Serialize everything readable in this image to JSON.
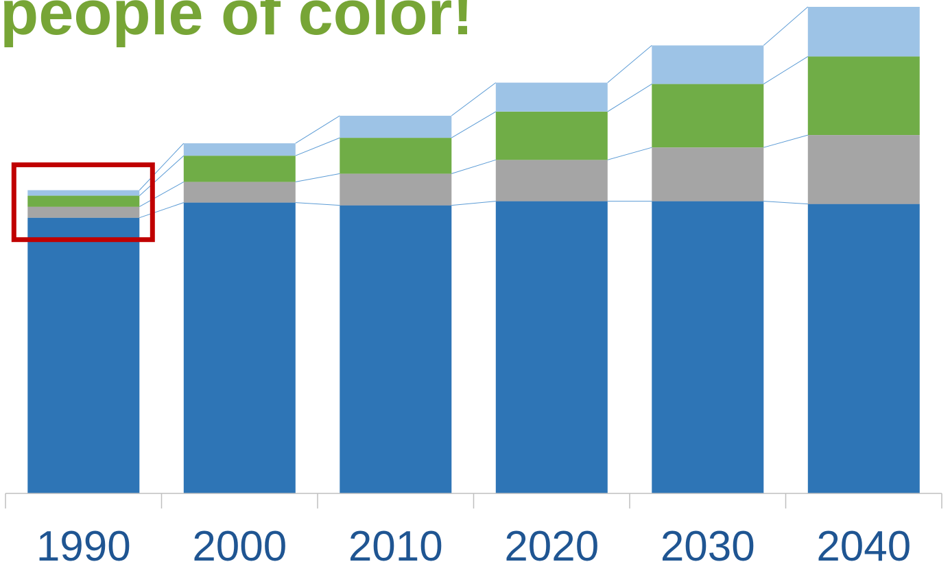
{
  "page": {
    "title": "people of color!"
  },
  "colors": {
    "title": "#77a536",
    "segments": [
      "#2e75b6",
      "#a5a5a5",
      "#70ad47",
      "#9dc3e6"
    ],
    "connector": "#5b9bd5",
    "axis": "#bfbfbf",
    "tick_label": "#1f5592",
    "highlight_box": "#c00000"
  },
  "chart_data": {
    "type": "bar",
    "stacked": true,
    "categories": [
      "1990",
      "2000",
      "2010",
      "2020",
      "2030",
      "2040"
    ],
    "series": [
      {
        "values": [
          200,
          211,
          209,
          212,
          212,
          210
        ]
      },
      {
        "values": [
          8,
          15,
          23,
          30,
          39,
          50
        ]
      },
      {
        "values": [
          8,
          19,
          26,
          35,
          46,
          57
        ]
      },
      {
        "values": [
          4,
          9,
          16,
          21,
          28,
          36
        ]
      }
    ],
    "ylim": [
      0,
      354
    ],
    "series_lines": true,
    "gridlines": false,
    "legend": "none",
    "highlight": "1990"
  }
}
